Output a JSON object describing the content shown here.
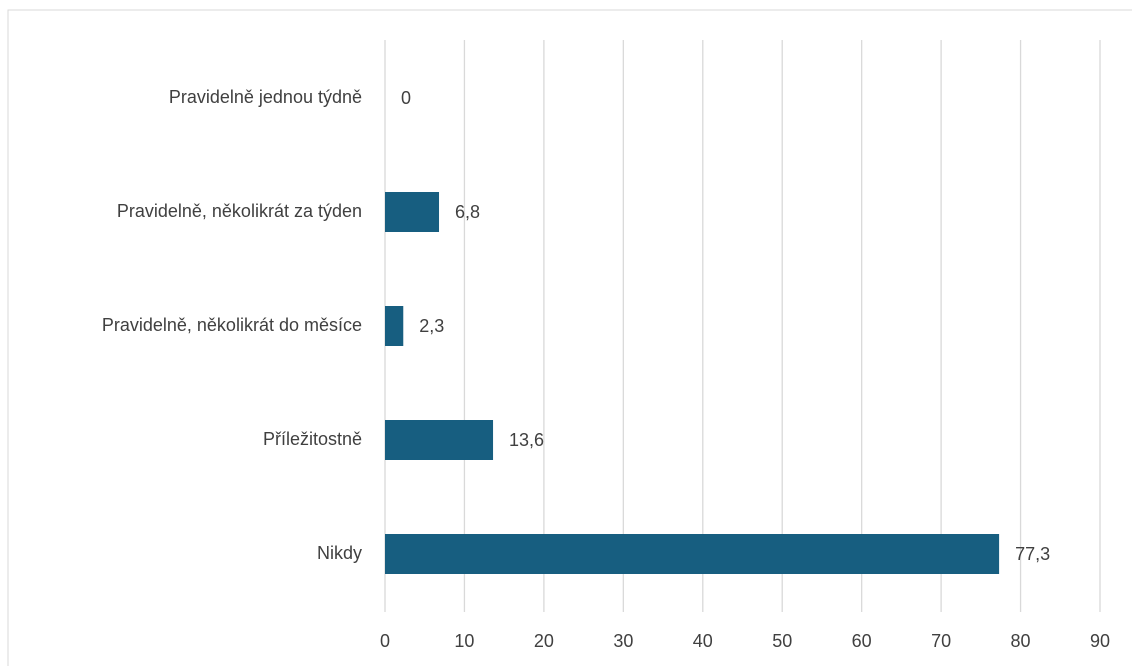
{
  "chart_data": {
    "type": "bar",
    "orientation": "horizontal",
    "categories": [
      "Pravidelně jednou týdně",
      "Pravidelně, několikrát za týden",
      "Pravidelně, několikrát do měsíce",
      "Příležitostně",
      "Nikdy"
    ],
    "values": [
      0,
      6.8,
      2.3,
      13.6,
      77.3
    ],
    "value_labels": [
      "0",
      "6,8",
      "2,3",
      "13,6",
      "77,3"
    ],
    "color": "#175e80",
    "xlim": [
      0,
      90
    ],
    "xticks": [
      0,
      10,
      20,
      30,
      40,
      50,
      60,
      70,
      80,
      90
    ],
    "grid": true
  }
}
